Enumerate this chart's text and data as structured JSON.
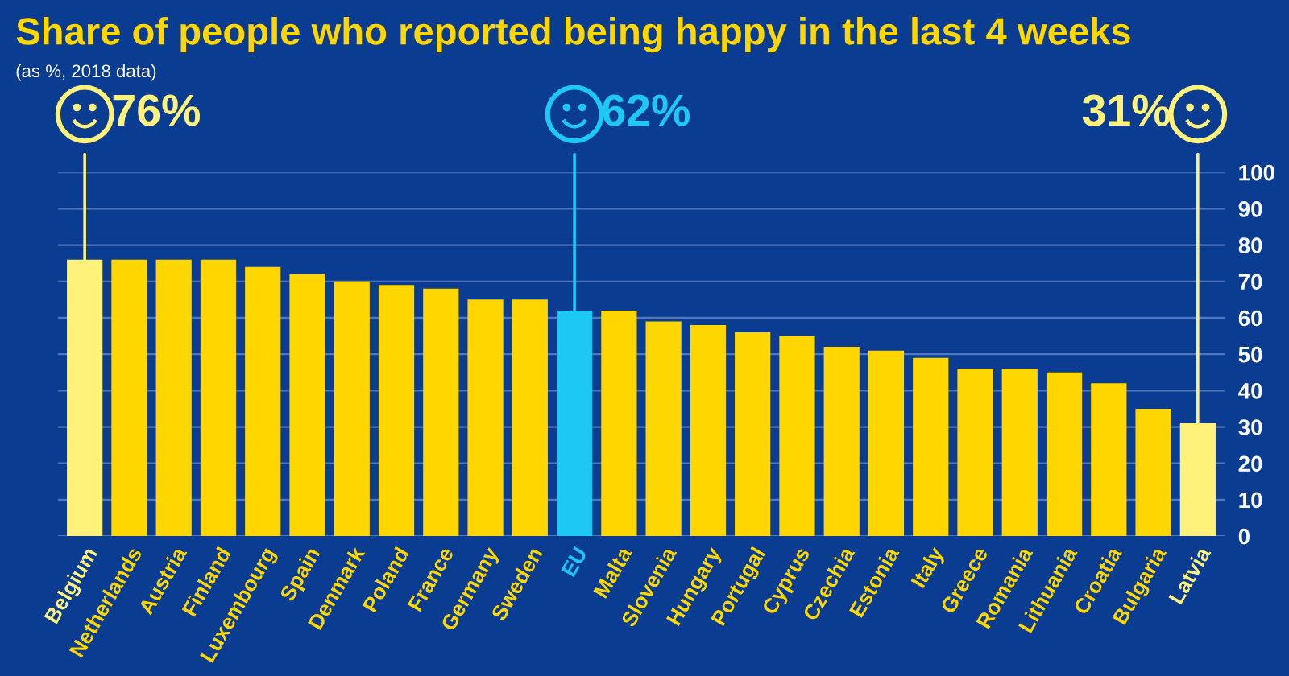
{
  "chart_data": {
    "type": "bar",
    "title": "Share of people who reported being happy in the last 4 weeks",
    "subtitle": "(as %, 2018 data)",
    "categories": [
      "Belgium",
      "Netherlands",
      "Austria",
      "Finland",
      "Luxembourg",
      "Spain",
      "Denmark",
      "Poland",
      "France",
      "Germany",
      "Sweden",
      "EU",
      "Malta",
      "Slovenia",
      "Hungary",
      "Portugal",
      "Cyprus",
      "Czechia",
      "Estonia",
      "Italy",
      "Greece",
      "Romania",
      "Lithuania",
      "Croatia",
      "Bulgaria",
      "Latvia"
    ],
    "values": [
      76,
      76,
      76,
      76,
      74,
      72,
      70,
      69,
      68,
      65,
      65,
      62,
      62,
      59,
      58,
      56,
      55,
      52,
      51,
      49,
      46,
      46,
      45,
      42,
      35,
      31
    ],
    "colors": [
      "#fff27a",
      "#ffd600",
      "#ffd600",
      "#ffd600",
      "#ffd600",
      "#ffd600",
      "#ffd600",
      "#ffd600",
      "#ffd600",
      "#ffd600",
      "#ffd600",
      "#1ec8f5",
      "#ffd600",
      "#ffd600",
      "#ffd600",
      "#ffd600",
      "#ffd600",
      "#ffd600",
      "#ffd600",
      "#ffd600",
      "#ffd600",
      "#ffd600",
      "#ffd600",
      "#ffd600",
      "#ffd600",
      "#fff27a"
    ],
    "annotations": [
      {
        "text": "76%",
        "x": "Belgium",
        "y": 76
      },
      {
        "text": "62%",
        "x": "EU",
        "y": 62
      },
      {
        "text": "31%",
        "x": "Latvia",
        "y": 31
      }
    ],
    "ylim": [
      0,
      100
    ],
    "yticks": [
      0,
      10,
      20,
      30,
      40,
      50,
      60,
      70,
      80,
      90,
      100
    ],
    "grid": "y",
    "legend": false
  }
}
